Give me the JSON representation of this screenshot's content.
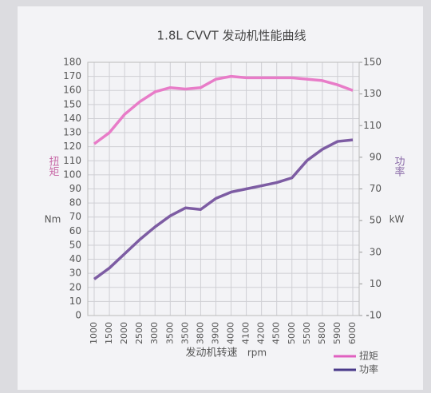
{
  "chart_data": {
    "type": "line",
    "title": "1.8L CVVT 发动机性能曲线",
    "y_label": "扭矩",
    "y_unit": "Nm",
    "y2_label": "功率",
    "y2_unit": "kW",
    "x_label": "发动机转速",
    "x_unit": "rpm",
    "categories": [
      "1000",
      "1500",
      "2000",
      "2500",
      "3000",
      "3500",
      "3500",
      "3800",
      "3900",
      "4000",
      "4100",
      "4200",
      "4500",
      "5000",
      "5500",
      "5800",
      "5900",
      "6000"
    ],
    "series": [
      {
        "name": "扭矩",
        "color": "#e87cc8",
        "legend_color": "#e060c0",
        "values": [
          122,
          130,
          143,
          152,
          159,
          162,
          161,
          162,
          168,
          170,
          169,
          169,
          169,
          169,
          168,
          167,
          164,
          160
        ]
      },
      {
        "name": "功率",
        "color": "#7d5ca3",
        "legend_color": "#4a3a8a",
        "axis": "y2",
        "values": [
          13,
          20,
          29,
          38,
          46,
          53,
          58,
          57,
          64,
          68,
          70,
          72,
          74,
          77,
          88,
          95,
          100,
          101
        ]
      }
    ],
    "ylim": [
      0,
      180
    ],
    "yticks": [
      0,
      10,
      20,
      30,
      40,
      50,
      60,
      70,
      80,
      90,
      100,
      110,
      120,
      130,
      140,
      150,
      160,
      170,
      180
    ],
    "y2lim": [
      -10,
      150
    ],
    "y2ticks": [
      -10,
      10,
      30,
      50,
      70,
      90,
      110,
      130,
      150
    ],
    "grid": true
  }
}
